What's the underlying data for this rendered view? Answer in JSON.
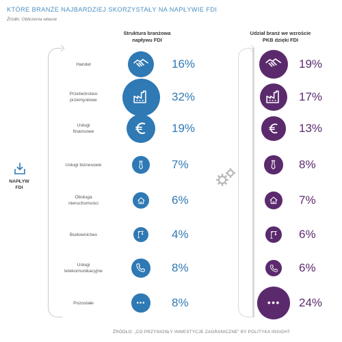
{
  "title": "KTÓRE BRANŻE NAJBARDZIEJ SKORZYSTAŁY NA NAPŁYWIE FDI",
  "source_top": "Źródło: Obliczenia własne",
  "column_fdi": {
    "line1": "Struktura branżowa",
    "line2": "napływu FDI"
  },
  "column_gdp": {
    "line1": "Udział branż we wzroście",
    "line2": "PKB dzięki FDI"
  },
  "inflow": {
    "line1": "NAPŁYW",
    "line2": "FDI"
  },
  "colors": {
    "fdi": "#2f79b4",
    "gdp": "#5b2a6d",
    "title": "#4a8fc0"
  },
  "rows": [
    {
      "label1": "Handel",
      "label2": "",
      "icon": "handshake-icon",
      "fdi_pct_value": 16,
      "fdi_pct": "16%",
      "gdp_pct_value": 19,
      "gdp_pct": "19%"
    },
    {
      "label1": "Przetwórstwo",
      "label2": "przemysłowe",
      "icon": "factory-icon",
      "fdi_pct_value": 32,
      "fdi_pct": "32%",
      "gdp_pct_value": 17,
      "gdp_pct": "17%"
    },
    {
      "label1": "Usługi",
      "label2": "finansowe",
      "icon": "euro-icon",
      "fdi_pct_value": 19,
      "fdi_pct": "19%",
      "gdp_pct_value": 13,
      "gdp_pct": "13%"
    },
    {
      "label1": "Usługi biznesowe",
      "label2": "",
      "icon": "tie-icon",
      "fdi_pct_value": 7,
      "fdi_pct": "7%",
      "gdp_pct_value": 8,
      "gdp_pct": "8%"
    },
    {
      "label1": "Obsługa",
      "label2": "nieruchomości",
      "icon": "house-icon",
      "fdi_pct_value": 6,
      "fdi_pct": "6%",
      "gdp_pct_value": 7,
      "gdp_pct": "7%"
    },
    {
      "label1": "Budownictwo",
      "label2": "",
      "icon": "crane-icon",
      "fdi_pct_value": 4,
      "fdi_pct": "4%",
      "gdp_pct_value": 6,
      "gdp_pct": "6%"
    },
    {
      "label1": "Usługi",
      "label2": "telekomunikacyjne",
      "icon": "phone-icon",
      "fdi_pct_value": 8,
      "fdi_pct": "8%",
      "gdp_pct_value": 6,
      "gdp_pct": "6%"
    },
    {
      "label1": "Pozostałe",
      "label2": "",
      "icon": "dots-icon",
      "fdi_pct_value": 8,
      "fdi_pct": "8%",
      "gdp_pct_value": 24,
      "gdp_pct": "24%"
    }
  ],
  "source_bottom": "ŹRÓDŁO: „CO PRZYNIOSŁY INWESTYCJE ZAGRANICZNE” BY POLITYKA INSIGHT"
}
